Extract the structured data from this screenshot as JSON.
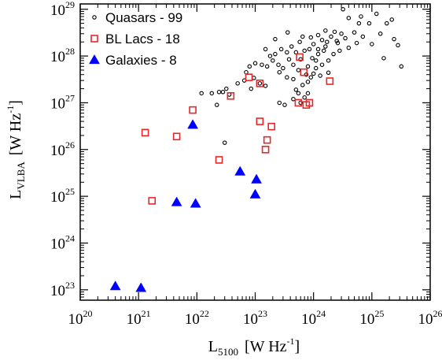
{
  "chart_data": {
    "type": "scatter",
    "xscale": "log",
    "yscale": "log",
    "xlim": [
      1e+20,
      1e+26
    ],
    "ylim": [
      6e+22,
      1.3e+29
    ],
    "xticks": [
      1e+20,
      1e+21,
      1e+22,
      1e+23,
      1e+24,
      1e+25,
      1e+26
    ],
    "yticks": [
      1e+23,
      1e+24,
      1e+25,
      1e+26,
      1e+27,
      1e+28,
      1e+29
    ],
    "tick_base": "10",
    "xlabel": {
      "main": "L",
      "sub": "5100",
      "unit": "[W Hz",
      "sup": "-1",
      "close": "]"
    },
    "ylabel": {
      "main": "L",
      "sub": "VLBA",
      "unit": "[W Hz",
      "sup": "-1",
      "close": "]"
    },
    "grid": false,
    "legend_position": "top-left",
    "series": [
      {
        "name": "Quasars - 99",
        "marker": "circle-open",
        "color": "#000000",
        "points": [
          [
            2.2e+22,
            9e+26
          ],
          [
            1.2e+22,
            1.6e+27
          ],
          [
            1.8e+22,
            1.6e+27
          ],
          [
            2.8e+22,
            1.7e+27
          ],
          [
            3.6e+22,
            1.5e+27
          ],
          [
            2.4e+22,
            1.7e+27
          ],
          [
            3.2e+22,
            2e+27
          ],
          [
            5e+22,
            2.6e+27
          ],
          [
            6.5e+22,
            3e+27
          ],
          [
            8.5e+22,
            2e+27
          ],
          [
            1.2e+23,
            2.6e+27
          ],
          [
            1.5e+23,
            2.3e+27
          ],
          [
            9.5e+22,
            3.4e+27
          ],
          [
            7e+22,
            4.5e+27
          ],
          [
            8e+22,
            6e+27
          ],
          [
            1e+23,
            7e+27
          ],
          [
            1.3e+23,
            6.5e+27
          ],
          [
            1.6e+23,
            6e+27
          ],
          [
            2e+23,
            8e+27
          ],
          [
            2.5e+23,
            6.5e+27
          ],
          [
            3e+23,
            5.5e+27
          ],
          [
            2.6e+23,
            4.5e+27
          ],
          [
            3.5e+23,
            3.5e+27
          ],
          [
            4.5e+23,
            3.2e+27
          ],
          [
            1.5e+23,
            1.4e+28
          ],
          [
            1.8e+23,
            1e+28
          ],
          [
            2.2e+23,
            1.1e+28
          ],
          [
            2.8e+23,
            1.4e+28
          ],
          [
            3.5e+23,
            1.2e+28
          ],
          [
            4.2e+23,
            1.6e+28
          ],
          [
            5e+23,
            1.2e+28
          ],
          [
            5.8e+23,
            2e+28
          ],
          [
            7e+23,
            1.3e+28
          ],
          [
            8.5e+23,
            1.4e+28
          ],
          [
            1e+24,
            1.8e+28
          ],
          [
            1.2e+24,
            1.4e+28
          ],
          [
            1.4e+24,
            2.2e+28
          ],
          [
            1.7e+24,
            2e+28
          ],
          [
            2e+24,
            2.6e+28
          ],
          [
            2.5e+24,
            2.1e+28
          ],
          [
            3e+24,
            3e+28
          ],
          [
            2.3e+24,
            3.3e+28
          ],
          [
            1.6e+24,
            3.5e+28
          ],
          [
            1.2e+24,
            2.8e+28
          ],
          [
            9e+23,
            2.5e+28
          ],
          [
            6.5e+23,
            2.6e+28
          ],
          [
            3.6e+23,
            3.2e+28
          ],
          [
            2.2e+23,
            2.3e+28
          ],
          [
            3.5e+24,
            2.4e+28
          ],
          [
            5.5e+24,
            1.9e+28
          ],
          [
            7e+24,
            2.6e+28
          ],
          [
            1e+25,
            1.8e+28
          ],
          [
            1.4e+25,
            3e+28
          ],
          [
            1.8e+25,
            5e+28
          ],
          [
            2.4e+25,
            2.3e+28
          ],
          [
            5e+24,
            3.2e+28
          ],
          [
            4e+24,
            6.5e+28
          ],
          [
            6e+24,
            5e+28
          ],
          [
            9e+24,
            5e+28
          ],
          [
            3.2e+24,
            1e+29
          ],
          [
            6.5e+24,
            7e+28
          ],
          [
            1.2e+25,
            8e+28
          ],
          [
            2.2e+25,
            6e+28
          ],
          [
            1.6e+25,
            9e+27
          ],
          [
            2.8e+25,
            1.7e+28
          ],
          [
            3.2e+25,
            6e+27
          ],
          [
            2.8e+24,
            1.3e+28
          ],
          [
            2.2e+24,
            1.1e+28
          ],
          [
            1.8e+24,
            8e+27
          ],
          [
            1.4e+24,
            6.5e+27
          ],
          [
            1.1e+24,
            5.5e+27
          ],
          [
            8e+23,
            6e+27
          ],
          [
            6e+23,
            8.5e+27
          ],
          [
            4.5e+23,
            6.5e+27
          ],
          [
            3.8e+23,
            8.5e+27
          ],
          [
            5.5e+23,
            5e+27
          ],
          [
            7.5e+23,
            4e+27
          ],
          [
            9e+23,
            3.5e+27
          ],
          [
            1e+24,
            4.2e+27
          ],
          [
            1.3e+24,
            3.8e+27
          ],
          [
            1.8e+24,
            4.4e+27
          ],
          [
            8e+23,
            2.8e+27
          ],
          [
            6.5e+23,
            2.4e+27
          ],
          [
            5e+23,
            1.9e+27
          ],
          [
            4.5e+23,
            1.2e+27
          ],
          [
            6e+23,
            1e+27
          ],
          [
            7e+23,
            1.3e+27
          ],
          [
            5.5e+23,
            1.6e+27
          ],
          [
            8e+23,
            1.6e+27
          ],
          [
            1.5e+24,
            1.3e+28
          ],
          [
            1.2e+24,
            1.1e+28
          ],
          [
            9.5e+23,
            9e+27
          ],
          [
            1.1e+24,
            8e+27
          ],
          [
            1.6e+24,
            1.6e+28
          ],
          [
            2.6e+24,
            1.9e+28
          ],
          [
            3.2e+23,
            9e+26
          ],
          [
            2.6e+23,
            1e+27
          ],
          [
            3e+22,
            1.4e+26
          ],
          [
            4e+24,
            1.5e+28
          ]
        ]
      },
      {
        "name": "BL Lacs - 18",
        "marker": "square-open",
        "color": "#e8262a",
        "points": [
          [
            1.3e+21,
            2.3e+26
          ],
          [
            1.7e+21,
            8e+24
          ],
          [
            4.5e+21,
            1.9e+26
          ],
          [
            8.5e+21,
            7e+26
          ],
          [
            2.4e+22,
            6e+25
          ],
          [
            3.8e+22,
            1.4e+27
          ],
          [
            7.8e+22,
            3.5e+27
          ],
          [
            1.2e+23,
            2.6e+27
          ],
          [
            1.2e+23,
            4e+26
          ],
          [
            1.5e+23,
            1e+26
          ],
          [
            1.6e+23,
            1.6e+26
          ],
          [
            1.9e+23,
            3.1e+26
          ],
          [
            5.8e+23,
            9.5e+27
          ],
          [
            6.8e+23,
            4.5e+27
          ],
          [
            5.5e+23,
            1e+27
          ],
          [
            7.5e+23,
            9e+26
          ],
          [
            8.5e+23,
            1e+27
          ],
          [
            1.9e+24,
            2.9e+27
          ]
        ]
      },
      {
        "name": "Galaxies - 8",
        "marker": "triangle-filled",
        "color": "#0000ff",
        "points": [
          [
            4e+20,
            1.2e+23
          ],
          [
            1.1e+21,
            1.1e+23
          ],
          [
            4.5e+21,
            7.5e+24
          ],
          [
            9.5e+21,
            7e+24
          ],
          [
            8.5e+21,
            3.4e+26
          ],
          [
            5.5e+22,
            3.4e+25
          ],
          [
            1.05e+23,
            2.3e+25
          ],
          [
            1e+23,
            1.1e+25
          ]
        ]
      }
    ]
  }
}
